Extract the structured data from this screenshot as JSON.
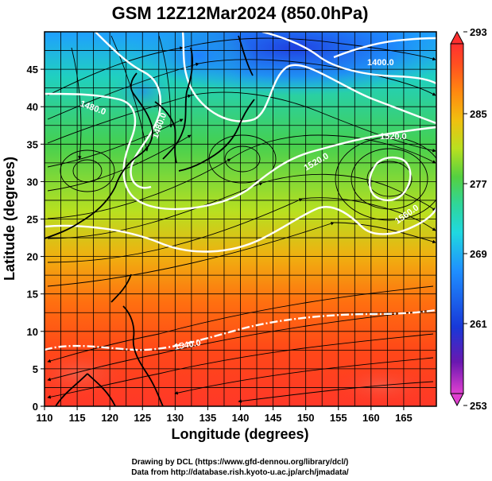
{
  "title": "GSM 12Z12Mar2024 (850.0hPa)",
  "xlabel": "Longitude (degrees)",
  "ylabel": "Latitude  (degrees)",
  "credits": {
    "line1": "Drawing by DCL (https://www.gfd-dennou.org/library/dcl/)",
    "line2": "Data from http://database.rish.kyoto-u.ac.jp/arch/jmadata/"
  },
  "map": {
    "lon_range": [
      110,
      170
    ],
    "lat_range": [
      0,
      50
    ],
    "x_ticks": [
      "110",
      "115",
      "120",
      "125",
      "130",
      "135",
      "140",
      "145",
      "150",
      "155",
      "160",
      "165"
    ],
    "y_ticks": [
      "0",
      "5",
      "10",
      "15",
      "20",
      "25",
      "30",
      "35",
      "40",
      "45"
    ],
    "gridlines": true,
    "contour_labels": [
      "1400.0",
      "1480.0",
      "1480.0",
      "1520.0",
      "1560.0",
      "1520.0",
      "1540.0"
    ],
    "colors": {
      "land_outline": "#000000",
      "streamlines": "#000000",
      "contours": "#ffffff"
    }
  },
  "colorbar": {
    "ticks": [
      "293",
      "285",
      "277",
      "269",
      "261",
      "253"
    ],
    "min": 253,
    "max": 293,
    "stops": [
      "#e040d0",
      "#6a18b0",
      "#1838d8",
      "#1f8fff",
      "#20d8e0",
      "#2fd69a",
      "#55d040",
      "#b8e020",
      "#f0c010",
      "#ff8a10",
      "#ff5020",
      "#ff3030"
    ]
  }
}
